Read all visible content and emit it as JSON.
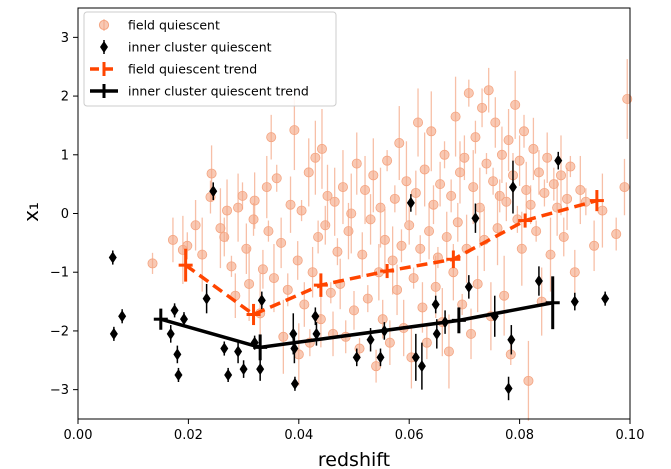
{
  "chart_data": {
    "type": "scatter",
    "xlabel": "redshift",
    "ylabel": "x₁",
    "xlim": [
      0.0,
      0.1
    ],
    "ylim": [
      -3.5,
      3.5
    ],
    "x_ticks": [
      "0.00",
      "0.02",
      "0.04",
      "0.06",
      "0.08",
      "0.10"
    ],
    "y_ticks": [
      "−3",
      "−2",
      "−1",
      "0",
      "1",
      "2",
      "3"
    ],
    "grid": false,
    "legend_position": "upper-left",
    "colors": {
      "field_points": "#f4a582",
      "field_trend": "#ff4500",
      "inner_points": "#000000",
      "inner_trend": "#000000"
    },
    "series": [
      {
        "name": "field quiescent",
        "marker": "circle",
        "points": [
          [
            0.0135,
            -0.85
          ],
          [
            0.0172,
            -0.45
          ],
          [
            0.019,
            -0.62
          ],
          [
            0.0198,
            -0.55
          ],
          [
            0.0213,
            -0.2
          ],
          [
            0.0225,
            -0.7
          ],
          [
            0.024,
            0.28
          ],
          [
            0.0242,
            0.68
          ],
          [
            0.0258,
            -0.25
          ],
          [
            0.0265,
            -0.4
          ],
          [
            0.027,
            0.05
          ],
          [
            0.0278,
            -0.9
          ],
          [
            0.0285,
            -1.4
          ],
          [
            0.029,
            0.1
          ],
          [
            0.0298,
            0.3
          ],
          [
            0.0305,
            -0.6
          ],
          [
            0.031,
            -1.2
          ],
          [
            0.0318,
            -0.1
          ],
          [
            0.032,
            0.22
          ],
          [
            0.033,
            -1.7
          ],
          [
            0.0335,
            -0.95
          ],
          [
            0.0342,
            0.45
          ],
          [
            0.0345,
            -0.3
          ],
          [
            0.035,
            1.3
          ],
          [
            0.0355,
            -1.1
          ],
          [
            0.036,
            0.6
          ],
          [
            0.0368,
            -0.5
          ],
          [
            0.0372,
            -2.1
          ],
          [
            0.038,
            -1.3
          ],
          [
            0.0385,
            0.15
          ],
          [
            0.0392,
            1.42
          ],
          [
            0.0398,
            -0.8
          ],
          [
            0.04,
            -2.4
          ],
          [
            0.0405,
            0.05
          ],
          [
            0.041,
            -1.55
          ],
          [
            0.0418,
            0.7
          ],
          [
            0.042,
            -2.2
          ],
          [
            0.0425,
            -1.0
          ],
          [
            0.043,
            0.95
          ],
          [
            0.0435,
            -0.4
          ],
          [
            0.044,
            -1.8
          ],
          [
            0.0442,
            1.1
          ],
          [
            0.0448,
            -0.2
          ],
          [
            0.0452,
            0.3
          ],
          [
            0.0458,
            -1.35
          ],
          [
            0.0462,
            -2.05
          ],
          [
            0.0465,
            0.2
          ],
          [
            0.047,
            -0.65
          ],
          [
            0.0475,
            -1.2
          ],
          [
            0.048,
            0.45
          ],
          [
            0.0485,
            -2.1
          ],
          [
            0.049,
            -0.3
          ],
          [
            0.0495,
            0.0
          ],
          [
            0.05,
            -1.65
          ],
          [
            0.0505,
            0.85
          ],
          [
            0.051,
            -2.3
          ],
          [
            0.0515,
            -0.7
          ],
          [
            0.052,
            0.4
          ],
          [
            0.0525,
            -1.45
          ],
          [
            0.053,
            -0.1
          ],
          [
            0.0535,
            0.65
          ],
          [
            0.054,
            -2.6
          ],
          [
            0.0545,
            -1.0
          ],
          [
            0.0548,
            0.1
          ],
          [
            0.0552,
            -1.8
          ],
          [
            0.0556,
            -0.45
          ],
          [
            0.056,
            0.9
          ],
          [
            0.0565,
            -2.2
          ],
          [
            0.057,
            -0.8
          ],
          [
            0.0574,
            0.25
          ],
          [
            0.0578,
            -1.3
          ],
          [
            0.0582,
            1.2
          ],
          [
            0.0586,
            -0.55
          ],
          [
            0.059,
            -1.95
          ],
          [
            0.0595,
            0.55
          ],
          [
            0.06,
            -0.2
          ],
          [
            0.0604,
            -2.45
          ],
          [
            0.0608,
            -1.1
          ],
          [
            0.0612,
            0.35
          ],
          [
            0.0616,
            1.55
          ],
          [
            0.062,
            -0.6
          ],
          [
            0.0624,
            -1.6
          ],
          [
            0.0628,
            0.75
          ],
          [
            0.0632,
            -2.2
          ],
          [
            0.0636,
            -0.3
          ],
          [
            0.064,
            1.4
          ],
          [
            0.0644,
            0.15
          ],
          [
            0.0648,
            -1.25
          ],
          [
            0.0652,
            -0.75
          ],
          [
            0.0656,
            0.5
          ],
          [
            0.066,
            -1.85
          ],
          [
            0.0664,
            1.0
          ],
          [
            0.0668,
            -0.4
          ],
          [
            0.0672,
            -2.35
          ],
          [
            0.0676,
            0.3
          ],
          [
            0.068,
            -1.0
          ],
          [
            0.0684,
            1.65
          ],
          [
            0.0688,
            -0.15
          ],
          [
            0.0692,
            0.7
          ],
          [
            0.0696,
            -1.55
          ],
          [
            0.07,
            0.95
          ],
          [
            0.0704,
            -0.6
          ],
          [
            0.0708,
            2.05
          ],
          [
            0.0712,
            -2.05
          ],
          [
            0.0716,
            0.45
          ],
          [
            0.072,
            1.3
          ],
          [
            0.0724,
            -1.2
          ],
          [
            0.0728,
            0.1
          ],
          [
            0.0732,
            1.8
          ],
          [
            0.0736,
            -0.45
          ],
          [
            0.074,
            0.85
          ],
          [
            0.0744,
            2.1
          ],
          [
            0.0748,
            -1.75
          ],
          [
            0.0752,
            0.55
          ],
          [
            0.0756,
            1.55
          ],
          [
            0.076,
            -0.25
          ],
          [
            0.0764,
            0.3
          ],
          [
            0.0768,
            1.0
          ],
          [
            0.0772,
            -1.4
          ],
          [
            0.0776,
            0.2
          ],
          [
            0.078,
            1.25
          ],
          [
            0.0784,
            -2.4
          ],
          [
            0.0788,
            0.65
          ],
          [
            0.0792,
            1.85
          ],
          [
            0.0796,
            -0.1
          ],
          [
            0.08,
            0.9
          ],
          [
            0.0804,
            -0.6
          ],
          [
            0.0808,
            1.4
          ],
          [
            0.0812,
            0.4
          ],
          [
            0.0816,
            -2.85
          ],
          [
            0.082,
            0.15
          ],
          [
            0.0825,
            1.1
          ],
          [
            0.083,
            -0.3
          ],
          [
            0.0835,
            0.7
          ],
          [
            0.084,
            -1.5
          ],
          [
            0.0845,
            0.35
          ],
          [
            0.085,
            0.95
          ],
          [
            0.0856,
            -0.7
          ],
          [
            0.0862,
            0.5
          ],
          [
            0.0868,
            0.1
          ],
          [
            0.0875,
            0.65
          ],
          [
            0.088,
            -0.4
          ],
          [
            0.0886,
            0.25
          ],
          [
            0.0892,
            0.8
          ],
          [
            0.09,
            -1.0
          ],
          [
            0.091,
            0.4
          ],
          [
            0.092,
            0.2
          ],
          [
            0.0935,
            -0.55
          ],
          [
            0.095,
            0.05
          ],
          [
            0.0975,
            -0.35
          ],
          [
            0.099,
            0.45
          ],
          [
            0.0995,
            1.95
          ]
        ]
      },
      {
        "name": "inner cluster quiescent",
        "marker": "thin_diamond",
        "points": [
          [
            0.0063,
            -0.75,
            0.12
          ],
          [
            0.0065,
            -2.05,
            0.12
          ],
          [
            0.008,
            -1.75,
            0.12
          ],
          [
            0.0168,
            -2.05,
            0.15
          ],
          [
            0.0175,
            -1.65,
            0.12
          ],
          [
            0.018,
            -2.4,
            0.15
          ],
          [
            0.0182,
            -2.75,
            0.12
          ],
          [
            0.0192,
            -1.8,
            0.12
          ],
          [
            0.0233,
            -1.45,
            0.25
          ],
          [
            0.0245,
            0.38,
            0.15
          ],
          [
            0.0265,
            -2.3,
            0.12
          ],
          [
            0.0272,
            -2.75,
            0.12
          ],
          [
            0.029,
            -2.35,
            0.2
          ],
          [
            0.03,
            -2.65,
            0.15
          ],
          [
            0.032,
            -2.2,
            0.12
          ],
          [
            0.033,
            -2.65,
            0.2
          ],
          [
            0.0333,
            -1.48,
            0.15
          ],
          [
            0.039,
            -2.05,
            0.35
          ],
          [
            0.0392,
            -2.3,
            0.25
          ],
          [
            0.0393,
            -2.9,
            0.12
          ],
          [
            0.043,
            -1.75,
            0.15
          ],
          [
            0.0432,
            -2.05,
            0.2
          ],
          [
            0.0505,
            -2.45,
            0.15
          ],
          [
            0.053,
            -2.15,
            0.2
          ],
          [
            0.0548,
            -2.45,
            0.15
          ],
          [
            0.0555,
            -2.0,
            0.15
          ],
          [
            0.0603,
            0.18,
            0.15
          ],
          [
            0.0612,
            -2.45,
            0.4
          ],
          [
            0.0623,
            -2.6,
            0.4
          ],
          [
            0.0648,
            -1.55,
            0.15
          ],
          [
            0.065,
            -2.05,
            0.25
          ],
          [
            0.0665,
            -1.85,
            0.2
          ],
          [
            0.0708,
            -1.25,
            0.2
          ],
          [
            0.072,
            -0.08,
            0.25
          ],
          [
            0.0755,
            -1.75,
            0.35
          ],
          [
            0.078,
            -2.98,
            0.2
          ],
          [
            0.0785,
            -2.15,
            0.25
          ],
          [
            0.0788,
            0.45,
            0.45
          ],
          [
            0.0835,
            -1.15,
            0.25
          ],
          [
            0.087,
            0.9,
            0.15
          ],
          [
            0.09,
            -1.5,
            0.15
          ],
          [
            0.0955,
            -1.45,
            0.12
          ]
        ]
      },
      {
        "name": "field quiescent trend",
        "line": "dashed",
        "points": [
          [
            0.0195,
            -0.88,
            0.28
          ],
          [
            0.0318,
            -1.72,
            0.18
          ],
          [
            0.044,
            -1.22,
            0.2
          ],
          [
            0.056,
            -0.98,
            0.12
          ],
          [
            0.068,
            -0.78,
            0.15
          ],
          [
            0.081,
            -0.12,
            0.12
          ],
          [
            0.094,
            0.22,
            0.18
          ]
        ]
      },
      {
        "name": "inner cluster quiescent trend",
        "line": "solid",
        "points": [
          [
            0.015,
            -1.8,
            0.18
          ],
          [
            0.033,
            -2.28,
            0.22
          ],
          [
            0.069,
            -1.82,
            0.22
          ],
          [
            0.086,
            -1.52,
            0.45
          ]
        ]
      }
    ]
  }
}
